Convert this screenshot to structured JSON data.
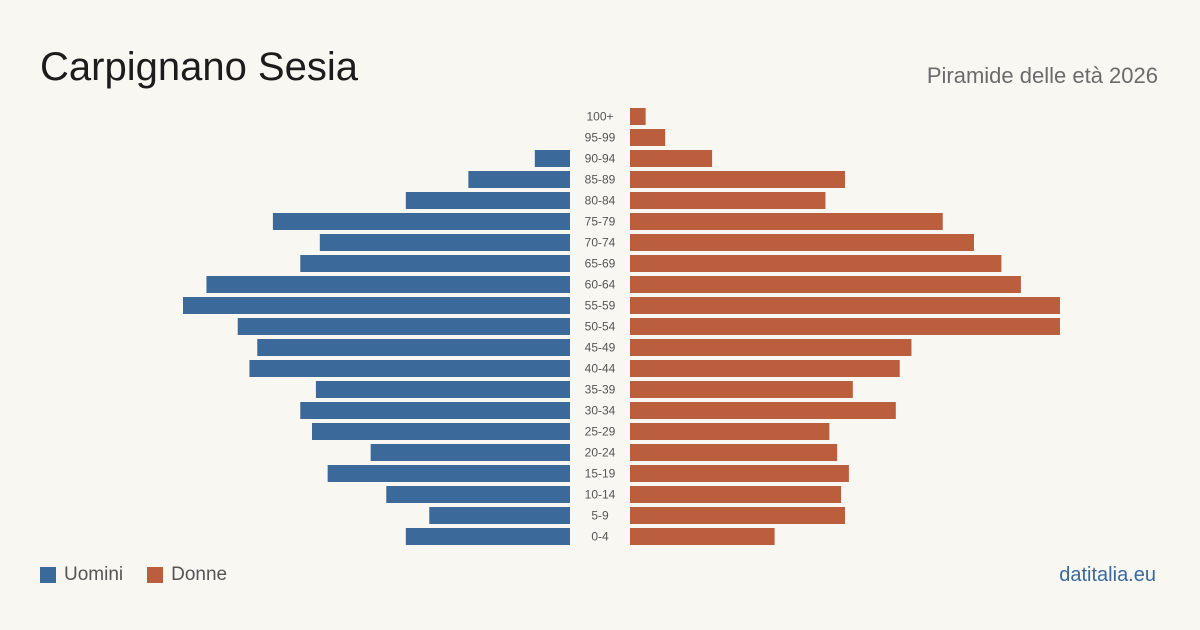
{
  "header": {
    "title": "Carpignano Sesia",
    "subtitle": "Piramide delle età 2026"
  },
  "legend": {
    "men": "Uomini",
    "women": "Donne"
  },
  "footer": {
    "site": "datitalia.eu"
  },
  "colors": {
    "men": "#3b6a9a",
    "women": "#bb5e3e",
    "tick_label": "#555555"
  },
  "chart_data": {
    "type": "bar",
    "orientation": "horizontal-pyramid",
    "categories": [
      "100+",
      "95-99",
      "90-94",
      "85-89",
      "80-84",
      "75-79",
      "70-74",
      "65-69",
      "60-64",
      "55-59",
      "50-54",
      "45-49",
      "40-44",
      "35-39",
      "30-34",
      "25-29",
      "20-24",
      "15-19",
      "10-14",
      "5-9",
      "0-4"
    ],
    "series": [
      {
        "name": "Uomini",
        "values": [
          0,
          0,
          9,
          26,
          42,
          76,
          64,
          69,
          93,
          99,
          85,
          80,
          82,
          65,
          69,
          66,
          51,
          62,
          47,
          36,
          42
        ]
      },
      {
        "name": "Donne",
        "values": [
          4,
          9,
          21,
          55,
          50,
          80,
          88,
          95,
          100,
          110,
          110,
          72,
          69,
          57,
          68,
          51,
          53,
          56,
          54,
          55,
          37
        ]
      }
    ],
    "xmax": 110
  }
}
